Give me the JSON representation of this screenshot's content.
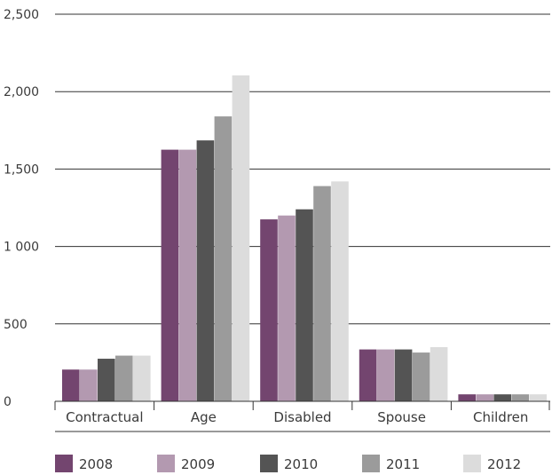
{
  "chart_data": {
    "type": "bar",
    "title": "",
    "xlabel": "",
    "ylabel": "",
    "categories": [
      "Contractual",
      "Age",
      "Disabled",
      "Spouse",
      "Children"
    ],
    "series": [
      {
        "name": "2008",
        "color": "#73456f",
        "values": [
          205,
          1625,
          1175,
          335,
          45
        ]
      },
      {
        "name": "2009",
        "color": "#b399b0",
        "values": [
          205,
          1625,
          1200,
          335,
          45
        ]
      },
      {
        "name": "2010",
        "color": "#545454",
        "values": [
          275,
          1685,
          1240,
          335,
          45
        ]
      },
      {
        "name": "2011",
        "color": "#9b9b9b",
        "values": [
          295,
          1840,
          1390,
          315,
          45
        ]
      },
      {
        "name": "2012",
        "color": "#dcdcdc",
        "values": [
          295,
          2105,
          1420,
          350,
          45
        ]
      }
    ],
    "ylim": [
      0,
      2500
    ],
    "yticks": [
      {
        "value": 0,
        "label": "0"
      },
      {
        "value": 500,
        "label": "500"
      },
      {
        "value": 1000,
        "label": "1 000"
      },
      {
        "value": 1500,
        "label": "1,500"
      },
      {
        "value": 2000,
        "label": "2,000"
      },
      {
        "value": 2500,
        "label": "2,500"
      }
    ],
    "grid": true,
    "legend_position": "bottom"
  }
}
